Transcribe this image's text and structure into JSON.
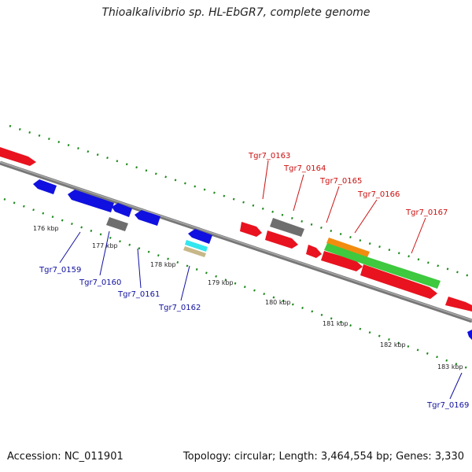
{
  "title": "Thioalkalivibrio sp. HL-EbGR7, complete genome",
  "accession": "Accession: NC_011901",
  "summary": "Topology: circular; Length: 3,464,554 bp; Genes: 3,330",
  "colors": {
    "forward": "#e8131f",
    "reverse": "#1010e0",
    "gray": "#777777",
    "green": "#3ec93e",
    "orange": "#f28c0f",
    "cyan": "#33e6ef",
    "tan": "#c7b889",
    "dots": "#1d8a1d",
    "labelUpper": "#cc1010",
    "labelLower": "#1010a0"
  },
  "ticks": [
    "176 kbp",
    "177 kbp",
    "178 kbp",
    "179 kbp",
    "180 kbp",
    "181 kbp",
    "182 kbp",
    "183 kbp"
  ],
  "genes_upper": [
    {
      "name": "Tgr7_0163"
    },
    {
      "name": "Tgr7_0164"
    },
    {
      "name": "Tgr7_0165"
    },
    {
      "name": "Tgr7_0166"
    },
    {
      "name": "Tgr7_0167"
    }
  ],
  "genes_lower": [
    {
      "name": "Tgr7_0159"
    },
    {
      "name": "Tgr7_0160"
    },
    {
      "name": "Tgr7_0161"
    },
    {
      "name": "Tgr7_0162"
    },
    {
      "name": "Tgr7_0169"
    }
  ]
}
